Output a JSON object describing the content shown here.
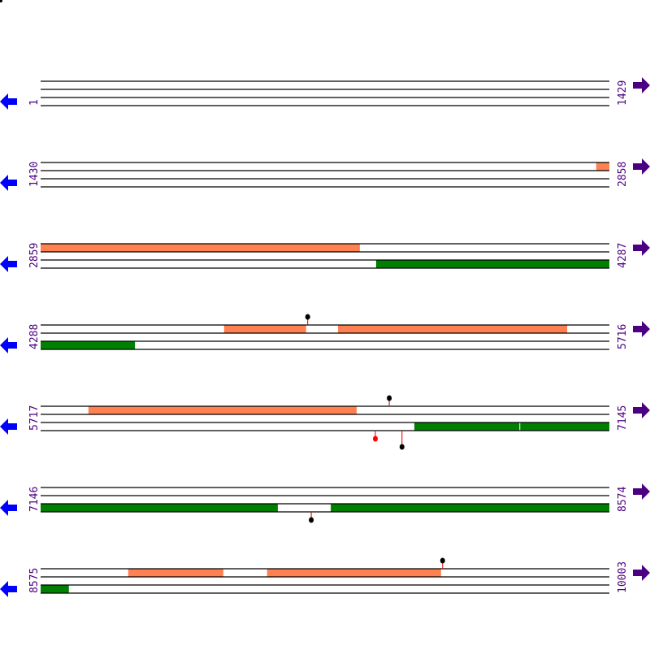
{
  "colors": {
    "line": "#000000",
    "forward_feature": "#ff8050",
    "reverse_feature": "#008000",
    "left_arrow": "#0000ff",
    "right_arrow": "#4b0082",
    "label": "#4b0082",
    "marker_black": "#000000",
    "marker_red": "#ff0000"
  },
  "icons": {
    "left": "arrow-left-icon",
    "right": "arrow-right-icon"
  },
  "rows": [
    {
      "start": "1",
      "end": "1429",
      "features": [],
      "markers": []
    },
    {
      "start": "1430",
      "end": "2858",
      "features": [
        {
          "track": "top",
          "from": 2826,
          "to": 2858,
          "color": "orange"
        }
      ],
      "markers": []
    },
    {
      "start": "2859",
      "end": "4287",
      "features": [
        {
          "track": "top",
          "from": 2859,
          "to": 3661,
          "color": "orange"
        },
        {
          "track": "bottom",
          "from": 3702,
          "to": 4287,
          "color": "green"
        }
      ],
      "markers": []
    },
    {
      "start": "4288",
      "end": "5716",
      "features": [
        {
          "track": "top",
          "from": 4749,
          "to": 4955,
          "color": "orange"
        },
        {
          "track": "top",
          "from": 5035,
          "to": 5611,
          "color": "orange"
        },
        {
          "track": "bottom",
          "from": 4288,
          "to": 4525,
          "color": "green"
        }
      ],
      "markers": [
        {
          "pos": 4959,
          "side": "up",
          "color": "black"
        }
      ]
    },
    {
      "start": "5717",
      "end": "7145",
      "features": [
        {
          "track": "top",
          "from": 5837,
          "to": 6511,
          "color": "orange"
        },
        {
          "track": "bottom",
          "from": 6656,
          "to": 6920,
          "color": "green"
        },
        {
          "track": "bottom",
          "from": 6922,
          "to": 7145,
          "color": "green"
        }
      ],
      "markers": [
        {
          "pos": 6593,
          "side": "up",
          "color": "black"
        },
        {
          "pos": 6558,
          "side": "down",
          "color": "red"
        },
        {
          "pos": 6625,
          "side": "down-far",
          "color": "black"
        }
      ]
    },
    {
      "start": "7146",
      "end": "8574",
      "features": [
        {
          "track": "bottom",
          "from": 7146,
          "to": 7742,
          "color": "green"
        },
        {
          "track": "bottom",
          "from": 7742,
          "to": 7875,
          "color": "white"
        },
        {
          "track": "bottom",
          "from": 7875,
          "to": 8574,
          "color": "green"
        }
      ],
      "markers": [
        {
          "pos": 7826,
          "side": "down",
          "color": "black"
        }
      ]
    },
    {
      "start": "8575",
      "end": "10003",
      "features": [
        {
          "track": "top",
          "from": 8795,
          "to": 9034,
          "color": "orange"
        },
        {
          "track": "top",
          "from": 9144,
          "to": 9581,
          "color": "orange"
        },
        {
          "track": "bottom",
          "from": 8575,
          "to": 8646,
          "color": "green"
        }
      ],
      "markers": [
        {
          "pos": 9585,
          "side": "up",
          "color": "black"
        }
      ]
    }
  ]
}
